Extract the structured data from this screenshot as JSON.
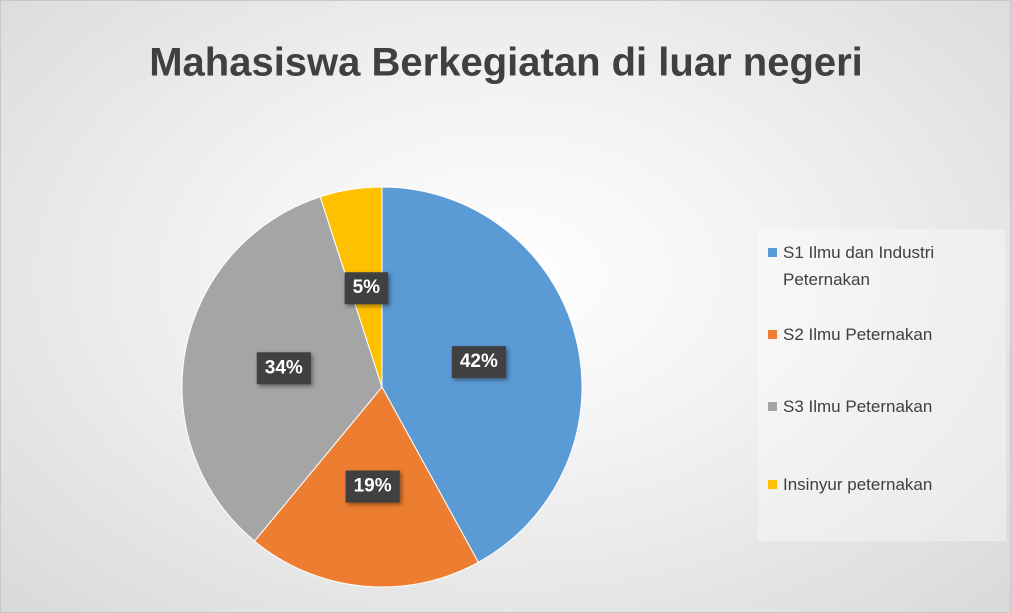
{
  "chart_data": {
    "type": "pie",
    "title": "Mahasiswa Berkegiatan di luar negeri",
    "categories": [
      "S1 Ilmu dan Industri Peternakan",
      "S2 Ilmu Peternakan",
      "S3 Ilmu Peternakan",
      "Insinyur peternakan"
    ],
    "values": [
      42,
      19,
      34,
      5
    ],
    "value_labels": [
      "42%",
      "19%",
      "34%",
      "5%"
    ],
    "colors": [
      "#5b9bd5",
      "#ed7d31",
      "#a5a5a5",
      "#ffc000"
    ],
    "legend": "right"
  }
}
